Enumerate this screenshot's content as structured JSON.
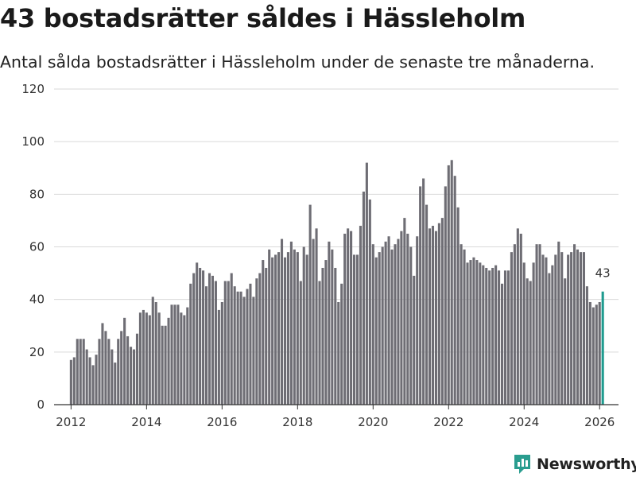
{
  "header": {
    "title": "43 bostadsrätter såldes i Hässleholm",
    "subtitle": "Antal sålda bostadsrätter i Hässleholm under de senaste tre månaderna."
  },
  "brand": {
    "name": "Newsworthy",
    "color": "#2a9d8f"
  },
  "colors": {
    "bar": "#6e6d74",
    "highlight": "#1f9b8f",
    "grid": "#d9d9d9",
    "axis": "#333333"
  },
  "chart_data": {
    "type": "bar",
    "title": "43 bostadsrätter såldes i Hässleholm",
    "subtitle": "Antal sålda bostadsrätter i Hässleholm under de senaste tre månaderna.",
    "xlabel": "",
    "ylabel": "",
    "ylim": [
      0,
      120
    ],
    "yticks": [
      0,
      20,
      40,
      60,
      80,
      100,
      120
    ],
    "xlim": [
      2011.55,
      2026.5
    ],
    "xticks": [
      2012,
      2014,
      2016,
      2018,
      2020,
      2022,
      2024,
      2026
    ],
    "grid": true,
    "start": 2012.0,
    "step": 0.08333,
    "values": [
      17,
      18,
      25,
      25,
      25,
      21,
      18,
      15,
      19,
      25,
      31,
      28,
      25,
      21,
      16,
      25,
      28,
      33,
      26,
      22,
      21,
      27,
      35,
      36,
      35,
      34,
      41,
      39,
      35,
      30,
      30,
      33,
      38,
      38,
      38,
      35,
      34,
      37,
      46,
      50,
      54,
      52,
      51,
      45,
      50,
      49,
      47,
      36,
      39,
      47,
      47,
      50,
      45,
      43,
      43,
      41,
      44,
      46,
      41,
      48,
      50,
      55,
      52,
      59,
      56,
      57,
      58,
      63,
      56,
      58,
      62,
      59,
      58,
      47,
      60,
      57,
      76,
      63,
      67,
      47,
      52,
      55,
      62,
      59,
      52,
      39,
      46,
      65,
      67,
      66,
      57,
      57,
      68,
      81,
      92,
      78,
      61,
      56,
      58,
      60,
      62,
      64,
      59,
      61,
      63,
      66,
      71,
      65,
      60,
      49,
      64,
      83,
      86,
      76,
      67,
      68,
      66,
      69,
      71,
      83,
      91,
      93,
      87,
      75,
      61,
      59,
      54,
      55,
      56,
      55,
      54,
      53,
      52,
      51,
      52,
      53,
      51,
      46,
      51,
      51,
      58,
      61,
      67,
      65,
      54,
      48,
      47,
      54,
      61,
      61,
      57,
      56,
      50,
      53,
      57,
      62,
      58,
      48,
      57,
      58,
      61,
      59,
      58,
      58,
      45,
      39,
      37,
      38,
      39,
      43
    ],
    "highlight_last": 1,
    "annotations": [
      {
        "label": "43"
      }
    ]
  }
}
